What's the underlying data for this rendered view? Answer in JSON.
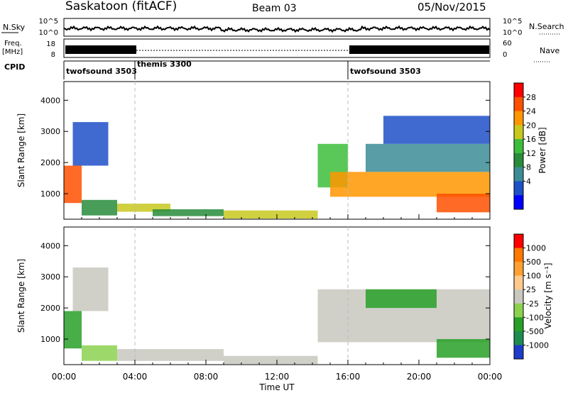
{
  "header": {
    "station": "Saskatoon (fitACF)",
    "beam": "Beam 03",
    "date": "05/Nov/2015"
  },
  "strips": {
    "nsky": {
      "label": "N.Sky",
      "ticks": [
        "10^5",
        "10^0"
      ]
    },
    "nsearch": {
      "label": "N.Search",
      "ticks": [
        "10^5",
        "10^0"
      ]
    },
    "freq": {
      "label_line1": "Freq.",
      "label_line2": "[MHz]",
      "ticks": [
        "18",
        "8"
      ]
    },
    "nave": {
      "label": "Nave",
      "ticks": [
        "60",
        "0"
      ]
    },
    "cpid": {
      "label": "CPID"
    }
  },
  "cpid_segments": [
    {
      "start_hour": 0,
      "label": "twofsound 3503"
    },
    {
      "start_hour": 4,
      "label": "themis 3300"
    },
    {
      "start_hour": 16,
      "label": "twofsound 3503"
    }
  ],
  "chart_data": [
    {
      "type": "heatmap",
      "name": "power",
      "xlabel": "Time UT",
      "ylabel": "Slant Range [km]",
      "xlim": [
        0,
        24
      ],
      "ylim": [
        180,
        4600
      ],
      "xticks": [
        "00:00",
        "04:00",
        "08:00",
        "12:00",
        "16:00",
        "20:00",
        "00:00"
      ],
      "yticks": [
        1000,
        2000,
        3000,
        4000
      ],
      "colorbar": {
        "label": "Power [dB]",
        "ticks": [
          "28",
          "24",
          "20",
          "16",
          "12",
          "8",
          "4"
        ],
        "min": 0,
        "max": 32,
        "colors": [
          "#0000ff",
          "#1e50c8",
          "#3c8c96",
          "#288c3c",
          "#3cbe3c",
          "#c8c81e",
          "#ff9600",
          "#ff5000",
          "#ff0000"
        ]
      },
      "regions": [
        {
          "t0": 0.0,
          "t1": 1.0,
          "r0": 700,
          "r1": 1900,
          "value": 26
        },
        {
          "t0": 1.0,
          "t1": 3.0,
          "r0": 300,
          "r1": 800,
          "value": 14
        },
        {
          "t0": 0.5,
          "t1": 2.5,
          "r0": 1900,
          "r1": 3300,
          "value": 7
        },
        {
          "t0": 3.0,
          "t1": 6.0,
          "r0": 420,
          "r1": 680,
          "value": 18
        },
        {
          "t0": 5.0,
          "t1": 9.0,
          "r0": 280,
          "r1": 500,
          "value": 13
        },
        {
          "t0": 9.0,
          "t1": 14.3,
          "r0": 200,
          "r1": 460,
          "value": 21
        },
        {
          "t0": 14.3,
          "t1": 16.0,
          "r0": 1200,
          "r1": 2600,
          "value": 15
        },
        {
          "t0": 15.0,
          "t1": 24.0,
          "r0": 900,
          "r1": 1700,
          "value": 24
        },
        {
          "t0": 17.0,
          "t1": 24.0,
          "r0": 1700,
          "r1": 2600,
          "value": 9
        },
        {
          "t0": 21.0,
          "t1": 24.0,
          "r0": 400,
          "r1": 1000,
          "value": 27
        },
        {
          "t0": 18.0,
          "t1": 24.0,
          "r0": 2600,
          "r1": 3500,
          "value": 6
        }
      ]
    },
    {
      "type": "heatmap",
      "name": "velocity",
      "xlabel": "Time UT",
      "ylabel": "Slant Range [km]",
      "xlim": [
        0,
        24
      ],
      "ylim": [
        180,
        4600
      ],
      "xticks": [
        "00:00",
        "04:00",
        "08:00",
        "12:00",
        "16:00",
        "20:00",
        "00:00"
      ],
      "yticks": [
        1000,
        2000,
        3000,
        4000
      ],
      "colorbar": {
        "label": "Velocity [m s⁻¹]",
        "ticks": [
          "1000",
          "500",
          "100",
          "25",
          "-25",
          "-100",
          "-500",
          "-1000"
        ],
        "colors": [
          "#1e3cc8",
          "#1e8c50",
          "#28a028",
          "#8cd250",
          "#c8c8c0",
          "#ffc88c",
          "#ffa032",
          "#ff7800",
          "#ff0000"
        ]
      },
      "regions": [
        {
          "t0": 0.0,
          "t1": 1.0,
          "r0": 700,
          "r1": 1900,
          "value": -500
        },
        {
          "t0": 1.0,
          "t1": 3.0,
          "r0": 300,
          "r1": 800,
          "value": -100
        },
        {
          "t0": 0.5,
          "t1": 2.5,
          "r0": 1900,
          "r1": 3300,
          "value": 0
        },
        {
          "t0": 3.0,
          "t1": 9.0,
          "r0": 300,
          "r1": 680,
          "value": 0
        },
        {
          "t0": 9.0,
          "t1": 14.3,
          "r0": 200,
          "r1": 460,
          "value": 0
        },
        {
          "t0": 14.3,
          "t1": 24.0,
          "r0": 900,
          "r1": 2600,
          "value": 0
        },
        {
          "t0": 17.0,
          "t1": 21.0,
          "r0": 2000,
          "r1": 2600,
          "value": -300
        },
        {
          "t0": 21.0,
          "t1": 24.0,
          "r0": 400,
          "r1": 1000,
          "value": -500
        }
      ]
    }
  ]
}
